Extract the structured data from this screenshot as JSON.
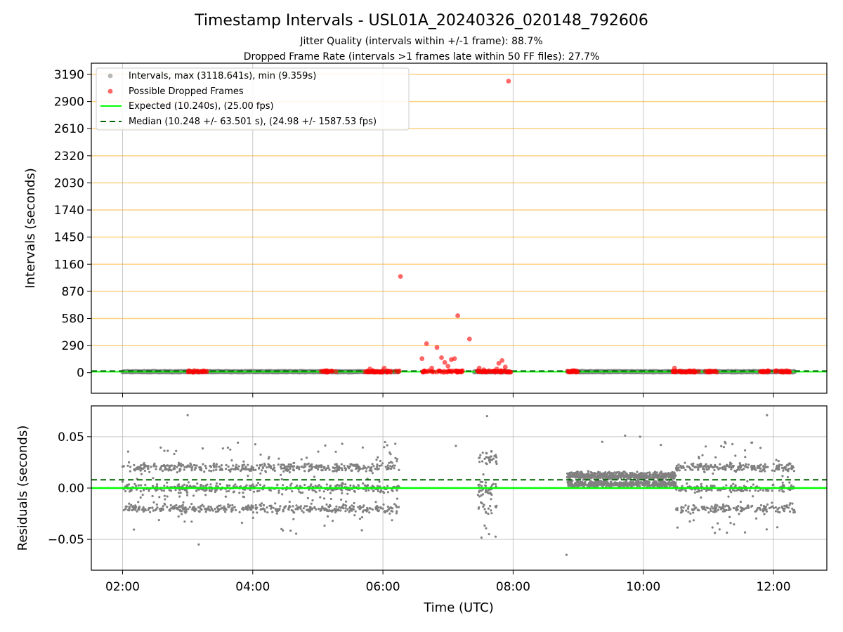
{
  "figure": {
    "title": "Timestamp Intervals - USL01A_20240326_020148_792606",
    "subtitle1": "Jitter Quality (intervals within +/-1 frame): 88.7%",
    "subtitle2": "Dropped Frame Rate (intervals >1 frames late within 50 FF files): 27.7%",
    "xlabel": "Time (UTC)"
  },
  "colors": {
    "grid": "#b0b0b0",
    "hline": "#ffd280",
    "interval_points": "#808080",
    "dropped_points": "#ff0000",
    "expected_line": "#00ff00",
    "median_line": "#006400"
  },
  "chart_data": [
    {
      "type": "scatter",
      "panel": "intervals",
      "ylabel": "Intervals (seconds)",
      "x_ticks": [
        "02:00",
        "04:00",
        "06:00",
        "08:00",
        "10:00",
        "12:00"
      ],
      "xlim_hours": [
        1.52,
        12.82
      ],
      "ylim": [
        -220,
        3310
      ],
      "y_ticks": [
        0,
        290,
        580,
        870,
        1160,
        1450,
        1740,
        2030,
        2320,
        2610,
        2900,
        3190
      ],
      "grid": "vertical",
      "horizontal_reference_lines": [
        290,
        580,
        870,
        1160,
        1450,
        1740,
        2030,
        2320,
        2610,
        2900,
        3190
      ],
      "legend": {
        "position": "top-left",
        "entries": [
          "Intervals, max (3118.641s), min (9.359s)",
          "Possible Dropped Frames",
          "Expected (10.240s), (25.00 fps)",
          "Median (10.248 +/- 63.501 s), (24.98 +/- 1587.53 fps)"
        ]
      },
      "expected": 10.24,
      "median": 10.248,
      "interval_segments_hours": [
        [
          2.0,
          6.25
        ],
        [
          7.4,
          7.95
        ],
        [
          8.83,
          12.33
        ]
      ],
      "dropped_point_clusters_hours": [
        [
          3.0,
          3.3
        ],
        [
          5.05,
          5.3
        ],
        [
          5.72,
          6.28
        ],
        [
          6.6,
          7.25
        ],
        [
          7.45,
          7.98
        ],
        [
          8.83,
          9.05
        ],
        [
          10.45,
          10.85
        ],
        [
          10.95,
          11.15
        ],
        [
          11.75,
          11.95
        ],
        [
          12.0,
          12.25
        ]
      ],
      "dropped_points": [
        {
          "t": 6.27,
          "v": 1030
        },
        {
          "t": 7.15,
          "v": 610
        },
        {
          "t": 7.93,
          "v": 3118.641
        },
        {
          "t": 6.67,
          "v": 310
        },
        {
          "t": 6.83,
          "v": 270
        },
        {
          "t": 7.33,
          "v": 360
        },
        {
          "t": 6.6,
          "v": 150
        },
        {
          "t": 6.9,
          "v": 160
        },
        {
          "t": 6.95,
          "v": 110
        },
        {
          "t": 7.05,
          "v": 140
        },
        {
          "t": 7.1,
          "v": 150
        },
        {
          "t": 7.0,
          "v": 70
        },
        {
          "t": 6.75,
          "v": 50
        },
        {
          "t": 7.83,
          "v": 130
        },
        {
          "t": 7.78,
          "v": 100
        },
        {
          "t": 7.75,
          "v": 40
        },
        {
          "t": 7.48,
          "v": 50
        },
        {
          "t": 7.88,
          "v": 60
        },
        {
          "t": 7.55,
          "v": 30
        },
        {
          "t": 6.02,
          "v": 50
        },
        {
          "t": 5.8,
          "v": 40
        },
        {
          "t": 10.48,
          "v": 50
        }
      ]
    },
    {
      "type": "scatter",
      "panel": "residuals",
      "ylabel": "Residuals (seconds)",
      "x_ticks": [
        "02:00",
        "04:00",
        "06:00",
        "08:00",
        "10:00",
        "12:00"
      ],
      "xlim_hours": [
        1.52,
        12.82
      ],
      "ylim": [
        -0.08,
        0.08
      ],
      "y_ticks": [
        0.05,
        0.0,
        -0.05
      ],
      "y_tick_labels": [
        "0.05",
        "0.00",
        "−0.05"
      ],
      "grid": "both",
      "expected": 0.0,
      "median": 0.008,
      "segments": [
        {
          "start": 2.0,
          "end": 6.25,
          "levels": [
            0.02,
            0.0,
            -0.02
          ],
          "spread": 0.006,
          "outliers": 0.045
        },
        {
          "start": 7.45,
          "end": 7.75,
          "levels": [
            0.03,
            0.0,
            -0.02
          ],
          "spread": 0.012,
          "outliers": 0.05
        },
        {
          "start": 8.83,
          "end": 10.5,
          "levels": [
            0.012,
            0.004
          ],
          "spread": 0.005,
          "outliers": 0.0
        },
        {
          "start": 10.5,
          "end": 12.33,
          "levels": [
            0.02,
            0.0,
            -0.02
          ],
          "spread": 0.006,
          "outliers": 0.045
        }
      ],
      "outlier_points": [
        {
          "t": 7.6,
          "v": 0.07
        },
        {
          "t": 7.12,
          "v": 0.041
        },
        {
          "t": 8.82,
          "v": -0.065
        },
        {
          "t": 9.37,
          "v": 0.045
        },
        {
          "t": 9.72,
          "v": 0.051
        },
        {
          "t": 9.95,
          "v": 0.05
        },
        {
          "t": 10.27,
          "v": 0.042
        },
        {
          "t": 3.0,
          "v": 0.071
        },
        {
          "t": 11.9,
          "v": 0.071
        },
        {
          "t": 3.17,
          "v": -0.055
        }
      ]
    }
  ]
}
